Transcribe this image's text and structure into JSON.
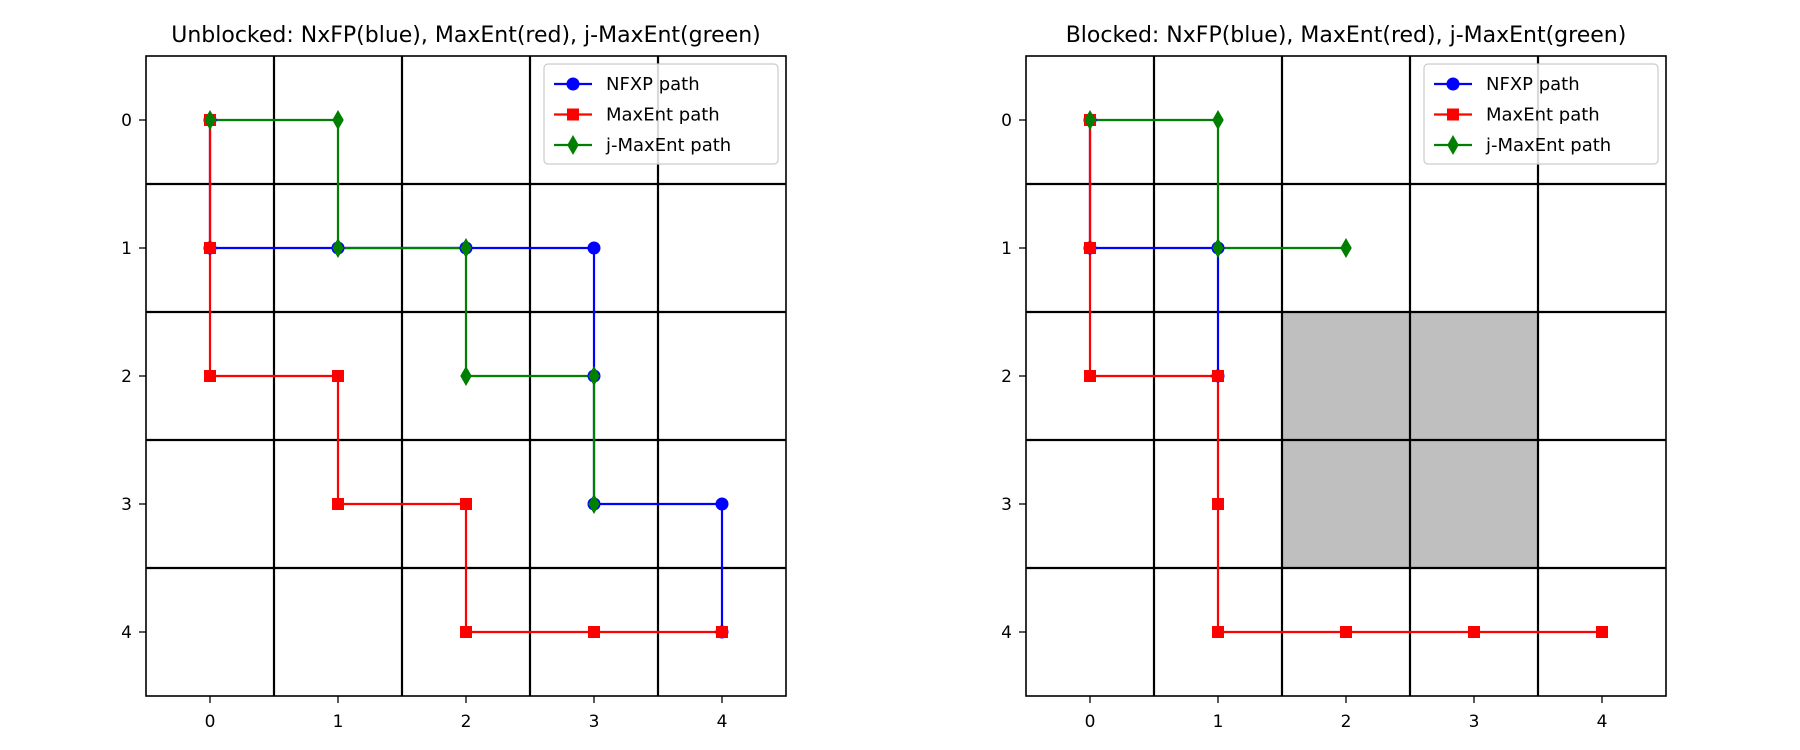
{
  "chart_data": [
    {
      "type": "line",
      "title": "Unblocked: NxFP(blue), MaxEnt(red), j-MaxEnt(green)",
      "xlabel": "",
      "ylabel": "",
      "x_ticks": [
        "0",
        "1",
        "2",
        "3",
        "4"
      ],
      "y_ticks": [
        "0",
        "1",
        "2",
        "3",
        "4"
      ],
      "xlim": [
        -0.5,
        4.5
      ],
      "ylim": [
        4.5,
        -0.5
      ],
      "grid": true,
      "blocked_cells": [],
      "legend_position": "top-right",
      "series": [
        {
          "name": "NFXP path",
          "color": "#0000ff",
          "marker": "circle",
          "points": [
            [
              0,
              0
            ],
            [
              0,
              1
            ],
            [
              1,
              1
            ],
            [
              2,
              1
            ],
            [
              3,
              1
            ],
            [
              3,
              2
            ],
            [
              3,
              3
            ],
            [
              4,
              3
            ],
            [
              4,
              4
            ]
          ]
        },
        {
          "name": "MaxEnt path",
          "color": "#ff0000",
          "marker": "square",
          "points": [
            [
              0,
              0
            ],
            [
              0,
              1
            ],
            [
              0,
              2
            ],
            [
              1,
              2
            ],
            [
              1,
              3
            ],
            [
              2,
              3
            ],
            [
              2,
              4
            ],
            [
              3,
              4
            ],
            [
              4,
              4
            ]
          ]
        },
        {
          "name": "j-MaxEnt path",
          "color": "#008000",
          "marker": "diamond",
          "points": [
            [
              0,
              0
            ],
            [
              1,
              0
            ],
            [
              1,
              1
            ],
            [
              2,
              1
            ],
            [
              2,
              2
            ],
            [
              3,
              2
            ],
            [
              3,
              3
            ]
          ]
        }
      ]
    },
    {
      "type": "line",
      "title": "Blocked: NxFP(blue), MaxEnt(red), j-MaxEnt(green)",
      "xlabel": "",
      "ylabel": "",
      "x_ticks": [
        "0",
        "1",
        "2",
        "3",
        "4"
      ],
      "y_ticks": [
        "0",
        "1",
        "2",
        "3",
        "4"
      ],
      "xlim": [
        -0.5,
        4.5
      ],
      "ylim": [
        4.5,
        -0.5
      ],
      "grid": true,
      "blocked_color": "#bfbfbf",
      "blocked_cells": [
        [
          2,
          2
        ],
        [
          3,
          2
        ],
        [
          2,
          3
        ],
        [
          3,
          3
        ]
      ],
      "legend_position": "top-right",
      "series": [
        {
          "name": "NFXP path",
          "color": "#0000ff",
          "marker": "circle",
          "points": [
            [
              0,
              0
            ],
            [
              0,
              1
            ],
            [
              1,
              1
            ],
            [
              1,
              2
            ]
          ]
        },
        {
          "name": "MaxEnt path",
          "color": "#ff0000",
          "marker": "square",
          "points": [
            [
              0,
              0
            ],
            [
              0,
              1
            ],
            [
              0,
              2
            ],
            [
              1,
              2
            ],
            [
              1,
              3
            ],
            [
              1,
              4
            ],
            [
              2,
              4
            ],
            [
              3,
              4
            ],
            [
              4,
              4
            ]
          ]
        },
        {
          "name": "j-MaxEnt path",
          "color": "#008000",
          "marker": "diamond",
          "points": [
            [
              0,
              0
            ],
            [
              1,
              0
            ],
            [
              1,
              1
            ],
            [
              2,
              1
            ]
          ]
        }
      ]
    }
  ]
}
